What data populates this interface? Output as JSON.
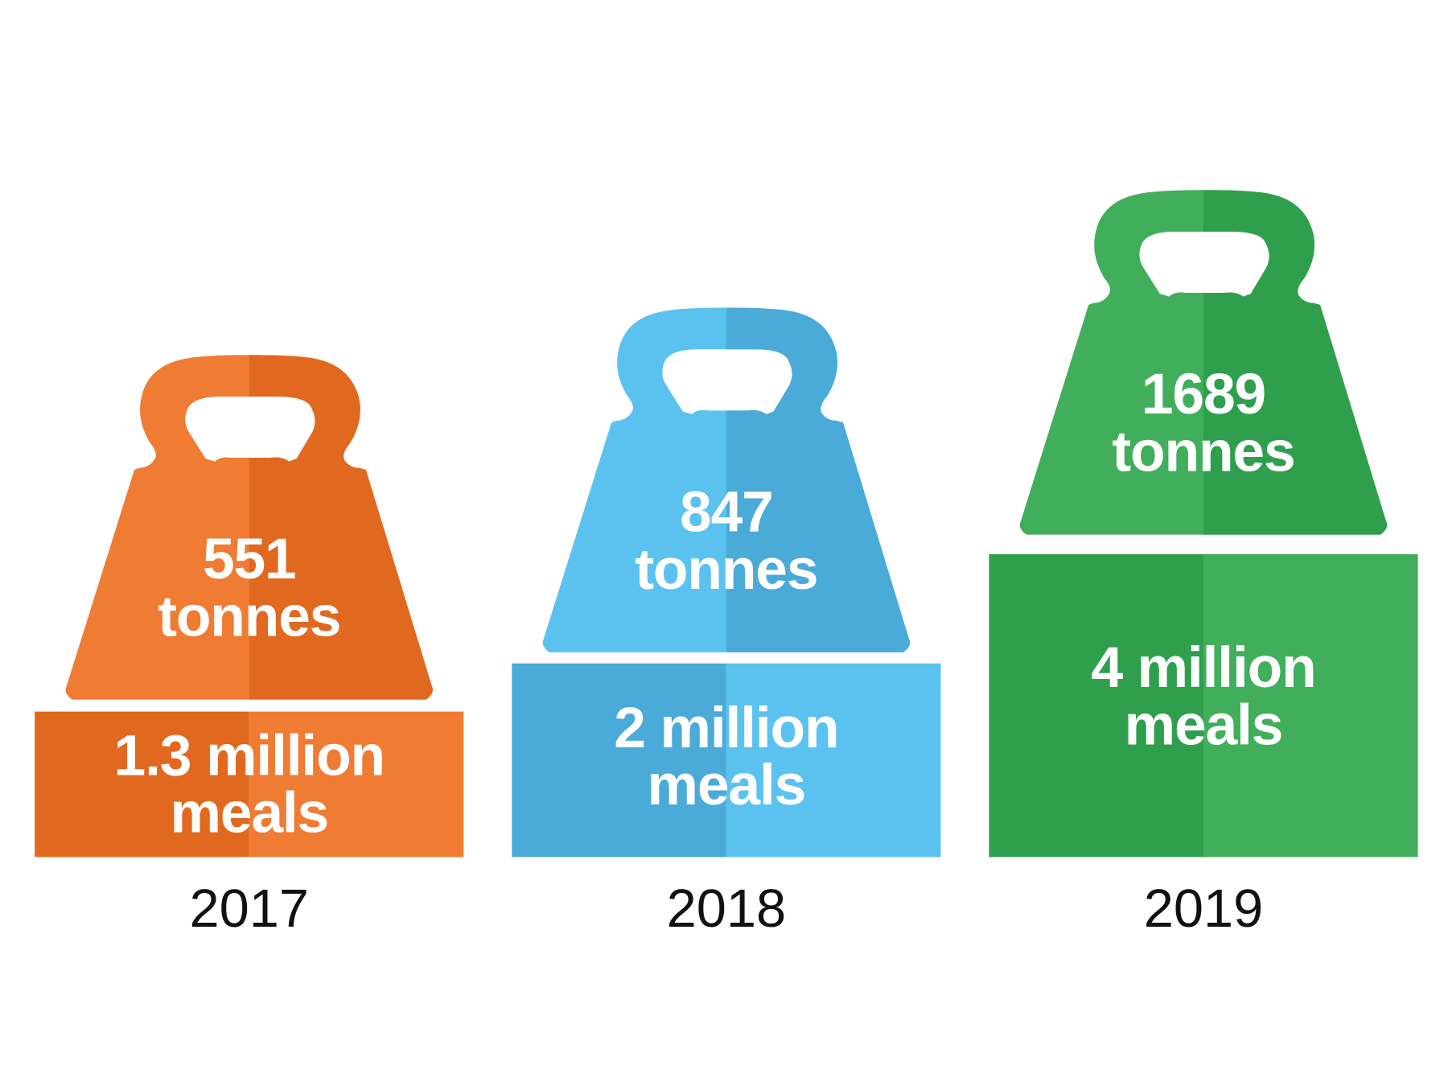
{
  "items": [
    {
      "weight_label": [
        "551",
        "tonnes"
      ],
      "meals_label": [
        "1.3 million",
        "meals"
      ],
      "year": "2017",
      "color_light": "#f07b32",
      "color_dark": "#e0691f"
    },
    {
      "weight_label": [
        "847",
        "tonnes"
      ],
      "meals_label": [
        "2 million",
        "meals"
      ],
      "year": "2018",
      "color_light": "#5bc2f0",
      "color_dark": "#4aaad8"
    },
    {
      "weight_label": [
        "1689",
        "tonnes"
      ],
      "meals_label": [
        "4 million",
        "meals"
      ],
      "year": "2019",
      "color_light": "#41ae5b",
      "color_dark": "#2f9f4e"
    }
  ]
}
